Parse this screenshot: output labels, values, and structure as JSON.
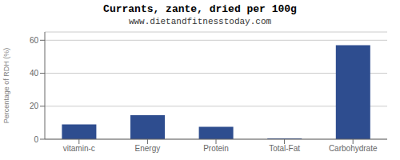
{
  "chart_data": {
    "type": "bar",
    "title": "Currants, zante, dried per 100g",
    "subtitle": "www.dietandfitnesstoday.com",
    "categories": [
      "vitamin-c",
      "Energy",
      "Protein",
      "Total-Fat",
      "Carbohydrate"
    ],
    "values": [
      9,
      14.5,
      7.5,
      0.5,
      57
    ],
    "color": "#2e4d8f",
    "ylabel": "Percentage of RDH (%)",
    "ylim": [
      0,
      65
    ],
    "yticks": [
      0,
      20,
      40,
      60
    ],
    "grid": true
  }
}
